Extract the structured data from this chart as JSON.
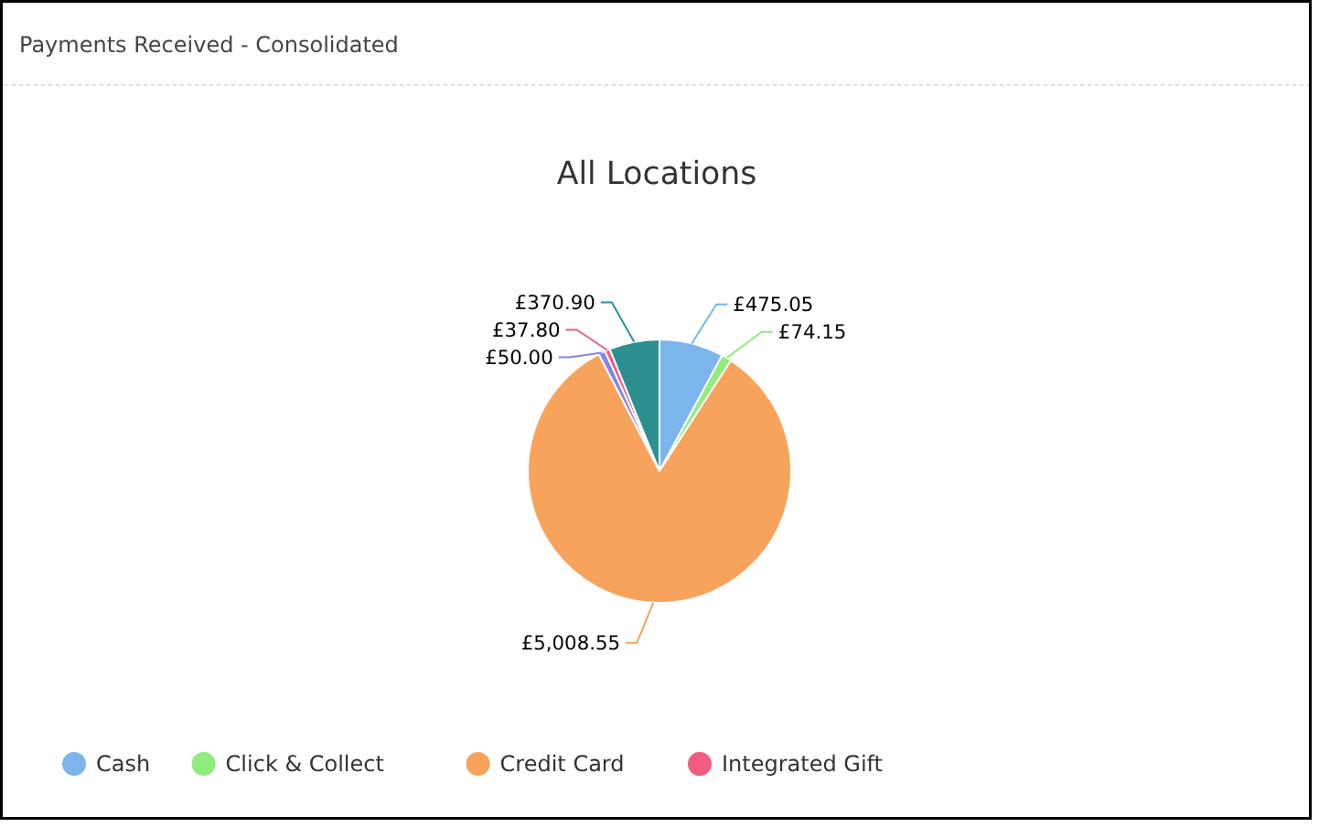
{
  "chart_data": {
    "type": "pie",
    "title": "Payments Received - Consolidated",
    "subtitle": "All Locations",
    "categories": [
      "Cash",
      "Click & Collect",
      "Credit Card",
      null,
      "Integrated Gift",
      null
    ],
    "values": [
      475.05,
      74.15,
      5008.55,
      50.0,
      37.8,
      370.9
    ],
    "colors": [
      "#7cb5ec",
      "#90ed7d",
      "#f7a35c",
      "#8085e9",
      "#f15c80",
      "#2b908f"
    ],
    "value_labels": [
      "£475.05",
      "£74.15",
      "£5,008.55",
      "£50.00",
      "£37.80",
      "£370.90"
    ],
    "legend": "bottom"
  }
}
